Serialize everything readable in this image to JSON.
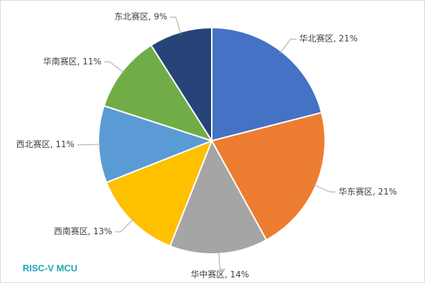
{
  "chart_data": {
    "type": "pie",
    "values": [
      21,
      21,
      14,
      13,
      11,
      11,
      9
    ],
    "value_labels": [
      "华北赛区, 21%",
      "华东赛区, 21%",
      "华中赛区, 14%",
      "西南赛区, 13%",
      "西北赛区, 11%",
      "华南赛区, 11%",
      "东北赛区, 9%"
    ],
    "colors": [
      "#4472c4",
      "#ed7d31",
      "#a5a5a5",
      "#ffc000",
      "#5b9bd5",
      "#70ad47",
      "#264478"
    ],
    "watermark": "RISC-V MCU"
  }
}
